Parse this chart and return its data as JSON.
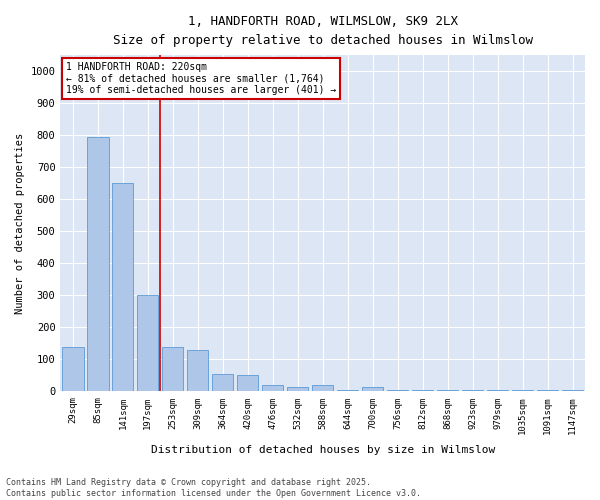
{
  "title_line1": "1, HANDFORTH ROAD, WILMSLOW, SK9 2LX",
  "title_line2": "Size of property relative to detached houses in Wilmslow",
  "xlabel": "Distribution of detached houses by size in Wilmslow",
  "ylabel": "Number of detached properties",
  "categories": [
    "29sqm",
    "85sqm",
    "141sqm",
    "197sqm",
    "253sqm",
    "309sqm",
    "364sqm",
    "420sqm",
    "476sqm",
    "532sqm",
    "588sqm",
    "644sqm",
    "700sqm",
    "756sqm",
    "812sqm",
    "868sqm",
    "923sqm",
    "979sqm",
    "1035sqm",
    "1091sqm",
    "1147sqm"
  ],
  "values": [
    140,
    795,
    650,
    300,
    140,
    130,
    55,
    50,
    20,
    15,
    20,
    5,
    15,
    5,
    5,
    5,
    5,
    5,
    5,
    5,
    5
  ],
  "bar_color": "#aec6e8",
  "bar_edge_color": "#5b9bd5",
  "background_color": "#dce6f5",
  "grid_color": "#ffffff",
  "fig_background": "#ffffff",
  "vline_x": 3.5,
  "vline_color": "#cc0000",
  "annotation_text": "1 HANDFORTH ROAD: 220sqm\n← 81% of detached houses are smaller (1,764)\n19% of semi-detached houses are larger (401) →",
  "annotation_box_color": "#cc0000",
  "ylim": [
    0,
    1050
  ],
  "yticks": [
    0,
    100,
    200,
    300,
    400,
    500,
    600,
    700,
    800,
    900,
    1000
  ],
  "footer_line1": "Contains HM Land Registry data © Crown copyright and database right 2025.",
  "footer_line2": "Contains public sector information licensed under the Open Government Licence v3.0."
}
